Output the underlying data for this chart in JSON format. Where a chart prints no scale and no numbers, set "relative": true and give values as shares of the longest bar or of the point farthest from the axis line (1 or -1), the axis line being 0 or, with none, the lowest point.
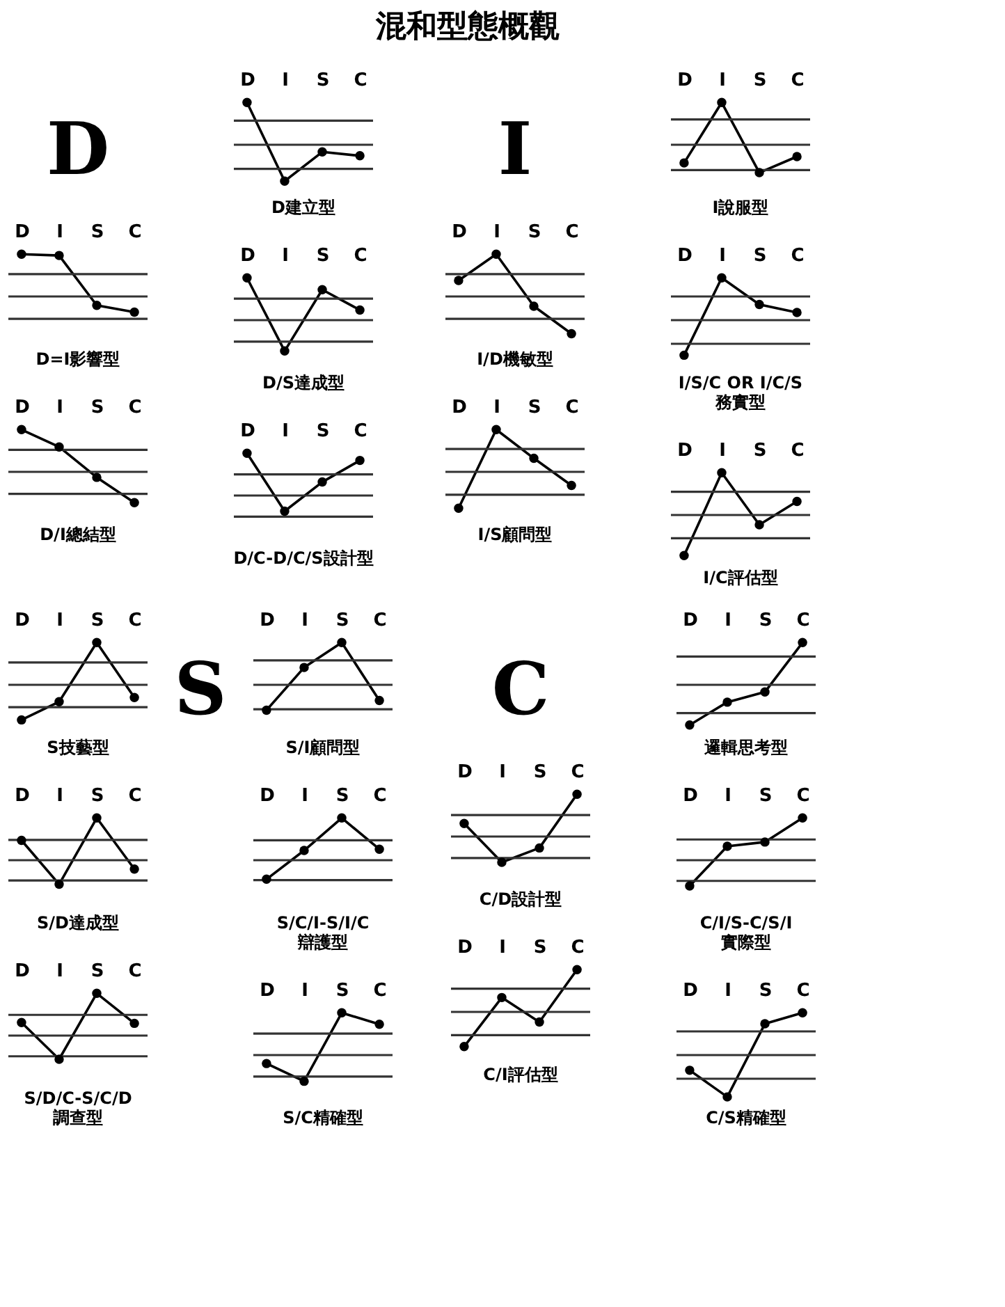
{
  "chart_data": [
    {
      "type": "other",
      "title": "混和型態概觀"
    },
    {
      "type": "other",
      "annotations": [
        "D"
      ]
    },
    {
      "type": "line",
      "title": "D建立型",
      "categories": [
        "D",
        "I",
        "S",
        "C"
      ],
      "values": [
        1,
        -0.86,
        -0.17,
        -0.26
      ],
      "color": "#000000",
      "relative": true,
      "marker": "circle",
      "line_style": "solid",
      "tick_labels": "x",
      "ref_lines": [
        {
          "axis": "y",
          "value": 0.57
        },
        {
          "axis": "y",
          "value": 0
        },
        {
          "axis": "y",
          "value": -0.57
        }
      ]
    },
    {
      "type": "line",
      "title": "D=I影響型",
      "categories": [
        "D",
        "I",
        "S",
        "C"
      ],
      "values": [
        1,
        0.97,
        -0.21,
        -0.37
      ],
      "color": "#000000",
      "relative": true,
      "marker": "circle",
      "line_style": "solid",
      "tick_labels": "x",
      "ref_lines": [
        {
          "axis": "y",
          "value": 0.53
        },
        {
          "axis": "y",
          "value": 0
        },
        {
          "axis": "y",
          "value": -0.53
        }
      ]
    },
    {
      "type": "line",
      "title": "D/S達成型",
      "categories": [
        "D",
        "I",
        "S",
        "C"
      ],
      "values": [
        1,
        -0.73,
        0.72,
        0.24
      ],
      "color": "#000000",
      "relative": true,
      "marker": "circle",
      "line_style": "solid",
      "tick_labels": "x",
      "ref_lines": [
        {
          "axis": "y",
          "value": 0.51
        },
        {
          "axis": "y",
          "value": 0
        },
        {
          "axis": "y",
          "value": -0.51
        }
      ]
    },
    {
      "type": "line",
      "title": "D/I總結型",
      "categories": [
        "D",
        "I",
        "S",
        "C"
      ],
      "values": [
        1,
        0.59,
        -0.13,
        -0.73
      ],
      "color": "#000000",
      "relative": true,
      "marker": "circle",
      "line_style": "solid",
      "tick_labels": "x",
      "ref_lines": [
        {
          "axis": "y",
          "value": 0.52
        },
        {
          "axis": "y",
          "value": 0
        },
        {
          "axis": "y",
          "value": -0.52
        }
      ]
    },
    {
      "type": "line",
      "title": "D/C-D/C/S設計型",
      "categories": [
        "D",
        "I",
        "S",
        "C"
      ],
      "values": [
        1,
        -0.37,
        0.32,
        0.83
      ],
      "color": "#000000",
      "relative": true,
      "marker": "circle",
      "line_style": "solid",
      "tick_labels": "x",
      "ref_lines": [
        {
          "axis": "y",
          "value": 0.5
        },
        {
          "axis": "y",
          "value": 0
        },
        {
          "axis": "y",
          "value": -0.5
        }
      ]
    },
    {
      "type": "other",
      "annotations": [
        "I"
      ]
    },
    {
      "type": "line",
      "title": "I說服型",
      "categories": [
        "D",
        "I",
        "S",
        "C"
      ],
      "values": [
        -0.43,
        1,
        -0.66,
        -0.28
      ],
      "color": "#000000",
      "relative": true,
      "marker": "circle",
      "line_style": "solid",
      "tick_labels": "x",
      "ref_lines": [
        {
          "axis": "y",
          "value": 0.6
        },
        {
          "axis": "y",
          "value": 0
        },
        {
          "axis": "y",
          "value": -0.6
        }
      ]
    },
    {
      "type": "line",
      "title": "I/D機敏型",
      "categories": [
        "D",
        "I",
        "S",
        "C"
      ],
      "values": [
        0.38,
        1,
        -0.23,
        -0.88
      ],
      "color": "#000000",
      "relative": true,
      "marker": "circle",
      "line_style": "solid",
      "tick_labels": "x",
      "ref_lines": [
        {
          "axis": "y",
          "value": 0.53
        },
        {
          "axis": "y",
          "value": 0
        },
        {
          "axis": "y",
          "value": -0.53
        }
      ]
    },
    {
      "type": "line",
      "title": "I/S/C OR I/C/S\n務實型",
      "categories": [
        "D",
        "I",
        "S",
        "C"
      ],
      "values": [
        -0.83,
        1,
        0.37,
        0.18
      ],
      "color": "#000000",
      "relative": true,
      "marker": "circle",
      "line_style": "solid",
      "tick_labels": "x",
      "ref_lines": [
        {
          "axis": "y",
          "value": 0.56
        },
        {
          "axis": "y",
          "value": 0
        },
        {
          "axis": "y",
          "value": -0.56
        }
      ]
    },
    {
      "type": "line",
      "title": "I/S顧問型",
      "categories": [
        "D",
        "I",
        "S",
        "C"
      ],
      "values": [
        -0.86,
        1,
        0.32,
        -0.32
      ],
      "color": "#000000",
      "relative": true,
      "marker": "circle",
      "line_style": "solid",
      "tick_labels": "x",
      "ref_lines": [
        {
          "axis": "y",
          "value": 0.54
        },
        {
          "axis": "y",
          "value": 0
        },
        {
          "axis": "y",
          "value": -0.54
        }
      ]
    },
    {
      "type": "line",
      "title": "I/C評估型",
      "categories": [
        "D",
        "I",
        "S",
        "C"
      ],
      "values": [
        -0.96,
        1,
        -0.23,
        0.32
      ],
      "color": "#000000",
      "relative": true,
      "marker": "circle",
      "line_style": "solid",
      "tick_labels": "x",
      "ref_lines": [
        {
          "axis": "y",
          "value": 0.55
        },
        {
          "axis": "y",
          "value": 0
        },
        {
          "axis": "y",
          "value": -0.55
        }
      ]
    },
    {
      "type": "line",
      "title": "S技藝型",
      "categories": [
        "D",
        "I",
        "S",
        "C"
      ],
      "values": [
        -0.83,
        -0.4,
        1,
        -0.3
      ],
      "color": "#000000",
      "relative": true,
      "marker": "circle",
      "line_style": "solid",
      "tick_labels": "x",
      "ref_lines": [
        {
          "axis": "y",
          "value": 0.53
        },
        {
          "axis": "y",
          "value": 0
        },
        {
          "axis": "y",
          "value": -0.53
        }
      ]
    },
    {
      "type": "other",
      "annotations": [
        "S"
      ]
    },
    {
      "type": "line",
      "title": "S/I顧問型",
      "categories": [
        "D",
        "I",
        "S",
        "C"
      ],
      "values": [
        -0.6,
        0.41,
        1,
        -0.37
      ],
      "color": "#000000",
      "relative": true,
      "marker": "circle",
      "line_style": "solid",
      "tick_labels": "x",
      "ref_lines": [
        {
          "axis": "y",
          "value": 0.58
        },
        {
          "axis": "y",
          "value": 0
        },
        {
          "axis": "y",
          "value": -0.58
        }
      ]
    },
    {
      "type": "line",
      "title": "S/D達成型",
      "categories": [
        "D",
        "I",
        "S",
        "C"
      ],
      "values": [
        0.47,
        -0.57,
        1,
        -0.21
      ],
      "color": "#000000",
      "relative": true,
      "marker": "circle",
      "line_style": "solid",
      "tick_labels": "x",
      "ref_lines": [
        {
          "axis": "y",
          "value": 0.48
        },
        {
          "axis": "y",
          "value": 0
        },
        {
          "axis": "y",
          "value": -0.48
        }
      ]
    },
    {
      "type": "line",
      "title": "S/C/I-S/I/C\n辯護型",
      "categories": [
        "D",
        "I",
        "S",
        "C"
      ],
      "values": [
        -0.45,
        0.23,
        1,
        0.26
      ],
      "color": "#000000",
      "relative": true,
      "marker": "circle",
      "line_style": "solid",
      "tick_labels": "x",
      "ref_lines": [
        {
          "axis": "y",
          "value": 0.47
        },
        {
          "axis": "y",
          "value": 0
        },
        {
          "axis": "y",
          "value": -0.47
        }
      ]
    },
    {
      "type": "line",
      "title": "S/D/C-S/C/D\n調查型",
      "categories": [
        "D",
        "I",
        "S",
        "C"
      ],
      "values": [
        0.31,
        -0.56,
        1,
        0.29
      ],
      "color": "#000000",
      "relative": true,
      "marker": "circle",
      "line_style": "solid",
      "tick_labels": "x",
      "ref_lines": [
        {
          "axis": "y",
          "value": 0.49
        },
        {
          "axis": "y",
          "value": 0
        },
        {
          "axis": "y",
          "value": -0.49
        }
      ]
    },
    {
      "type": "line",
      "title": "S/C精確型",
      "categories": [
        "D",
        "I",
        "S",
        "C"
      ],
      "values": [
        -0.2,
        -0.62,
        1,
        0.73
      ],
      "color": "#000000",
      "relative": true,
      "marker": "circle",
      "line_style": "solid",
      "tick_labels": "x",
      "ref_lines": [
        {
          "axis": "y",
          "value": 0.51
        },
        {
          "axis": "y",
          "value": 0
        },
        {
          "axis": "y",
          "value": -0.51
        }
      ]
    },
    {
      "type": "other",
      "annotations": [
        "C"
      ]
    },
    {
      "type": "line",
      "title": "邏輯思考型",
      "categories": [
        "D",
        "I",
        "S",
        "C"
      ],
      "values": [
        -0.95,
        -0.41,
        -0.17,
        1
      ],
      "color": "#000000",
      "relative": true,
      "marker": "circle",
      "line_style": "solid",
      "tick_labels": "x",
      "ref_lines": [
        {
          "axis": "y",
          "value": 0.67
        },
        {
          "axis": "y",
          "value": 0
        },
        {
          "axis": "y",
          "value": -0.67
        }
      ]
    },
    {
      "type": "line",
      "title": "C/D設計型",
      "categories": [
        "D",
        "I",
        "S",
        "C"
      ],
      "values": [
        0.31,
        -0.61,
        -0.27,
        1
      ],
      "color": "#000000",
      "relative": true,
      "marker": "circle",
      "line_style": "solid",
      "tick_labels": "x",
      "ref_lines": [
        {
          "axis": "y",
          "value": 0.51
        },
        {
          "axis": "y",
          "value": 0
        },
        {
          "axis": "y",
          "value": -0.51
        }
      ]
    },
    {
      "type": "line",
      "title": "C/I/S-C/S/I\n實際型",
      "categories": [
        "D",
        "I",
        "S",
        "C"
      ],
      "values": [
        -0.61,
        0.33,
        0.43,
        1
      ],
      "color": "#000000",
      "relative": true,
      "marker": "circle",
      "line_style": "solid",
      "tick_labels": "x",
      "ref_lines": [
        {
          "axis": "y",
          "value": 0.49
        },
        {
          "axis": "y",
          "value": 0
        },
        {
          "axis": "y",
          "value": -0.49
        }
      ]
    },
    {
      "type": "line",
      "title": "C/I評估型",
      "categories": [
        "D",
        "I",
        "S",
        "C"
      ],
      "values": [
        -0.82,
        0.34,
        -0.24,
        1
      ],
      "color": "#000000",
      "relative": true,
      "marker": "circle",
      "line_style": "solid",
      "tick_labels": "x",
      "ref_lines": [
        {
          "axis": "y",
          "value": 0.55
        },
        {
          "axis": "y",
          "value": 0
        },
        {
          "axis": "y",
          "value": -0.55
        }
      ]
    },
    {
      "type": "line",
      "title": "C/S精確型",
      "categories": [
        "D",
        "I",
        "S",
        "C"
      ],
      "values": [
        -0.36,
        -0.99,
        0.74,
        1
      ],
      "color": "#000000",
      "relative": true,
      "marker": "circle",
      "line_style": "solid",
      "tick_labels": "x",
      "ref_lines": [
        {
          "axis": "y",
          "value": 0.56
        },
        {
          "axis": "y",
          "value": 0
        },
        {
          "axis": "y",
          "value": -0.56
        }
      ]
    }
  ]
}
